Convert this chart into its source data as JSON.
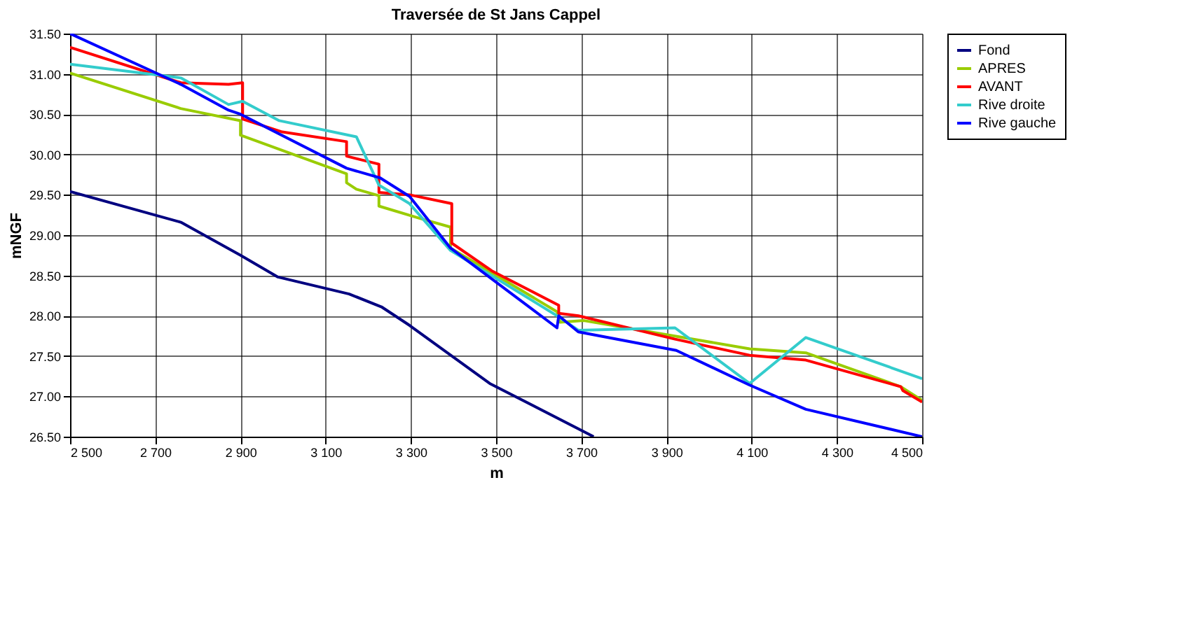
{
  "chart_data": {
    "type": "line",
    "title": "Traversée de St Jans Cappel",
    "xlabel": "m",
    "ylabel": "mNGF",
    "xlim": [
      2500,
      4500
    ],
    "xticks": [
      {
        "value": 2500,
        "label": "2 500"
      },
      {
        "value": 2700,
        "label": "2 700"
      },
      {
        "value": 2900,
        "label": "2 900"
      },
      {
        "value": 3100,
        "label": "3 100"
      },
      {
        "value": 3300,
        "label": "3 300"
      },
      {
        "value": 3500,
        "label": "3 500"
      },
      {
        "value": 3700,
        "label": "3 700"
      },
      {
        "value": 3900,
        "label": "3 900"
      },
      {
        "value": 4100,
        "label": "4 100"
      },
      {
        "value": 4300,
        "label": "4 300"
      },
      {
        "value": 4500,
        "label": "4 500"
      }
    ],
    "ylim": [
      26.5,
      31.5
    ],
    "yticks": [
      {
        "value": 26.5,
        "label": "26.50"
      },
      {
        "value": 27,
        "label": "27.00"
      },
      {
        "value": 27.5,
        "label": "27.50"
      },
      {
        "value": 28,
        "label": "28.00"
      },
      {
        "value": 28.5,
        "label": "28.50"
      },
      {
        "value": 29,
        "label": "29.00"
      },
      {
        "value": 29.5,
        "label": "29.50"
      },
      {
        "value": 30,
        "label": "30.00"
      },
      {
        "value": 30.5,
        "label": "30.50"
      },
      {
        "value": 31,
        "label": "31.00"
      },
      {
        "value": 31.5,
        "label": "31.50"
      }
    ],
    "grid": true,
    "legend": "right",
    "marker": "none",
    "line_style": "solid",
    "series": [
      {
        "name": "Fond",
        "color": "#000080",
        "x": [
          2500,
          2760,
          2900,
          2988,
          3155,
          3231,
          3297,
          3485,
          3729
        ],
        "values": [
          29.54,
          29.16,
          28.75,
          28.48,
          28.27,
          28.11,
          27.88,
          27.16,
          26.5
        ]
      },
      {
        "name": "APRES",
        "color": "#99cc00",
        "x": [
          2500,
          2760,
          2900,
          2900,
          3149,
          3149,
          3172,
          3225,
          3225,
          3320,
          3393,
          3393,
          3643,
          3650,
          3706,
          4095,
          4227,
          4450,
          4500
        ],
        "values": [
          31.01,
          30.57,
          30.42,
          30.24,
          29.76,
          29.65,
          29.57,
          29.49,
          29.36,
          29.21,
          29.1,
          28.84,
          28.05,
          27.92,
          27.94,
          27.59,
          27.54,
          27.12,
          26.95
        ]
      },
      {
        "name": "AVANT",
        "color": "#ff0000",
        "x": [
          2500,
          2760,
          2872,
          2905,
          2905,
          2998,
          3149,
          3149,
          3225,
          3225,
          3297,
          3396,
          3396,
          3492,
          3647,
          3647,
          3693,
          3920,
          4095,
          4227,
          4450,
          4455,
          4500
        ],
        "values": [
          31.33,
          30.89,
          30.87,
          30.89,
          30.44,
          30.28,
          30.16,
          29.98,
          29.88,
          29.53,
          29.5,
          29.39,
          28.9,
          28.55,
          28.13,
          28.03,
          28.0,
          27.71,
          27.51,
          27.45,
          27.12,
          27.07,
          26.93
        ]
      },
      {
        "name": "Rive droite",
        "color": "#33cccc",
        "x": [
          2500,
          2760,
          2872,
          2905,
          2991,
          3172,
          3225,
          3297,
          3393,
          3643,
          3693,
          3920,
          4095,
          4227,
          4500
        ],
        "values": [
          31.12,
          30.95,
          30.62,
          30.66,
          30.42,
          30.22,
          29.62,
          29.39,
          28.81,
          28.0,
          27.82,
          27.85,
          27.16,
          27.73,
          27.22
        ]
      },
      {
        "name": "Rive gauche",
        "color": "#0000ff",
        "x": [
          2500,
          2760,
          2872,
          2900,
          3149,
          3228,
          3297,
          3393,
          3643,
          3647,
          3693,
          3923,
          4095,
          4227,
          4500
        ],
        "values": [
          31.5,
          30.87,
          30.55,
          30.5,
          29.83,
          29.71,
          29.48,
          28.84,
          27.85,
          28.0,
          27.8,
          27.57,
          27.14,
          26.84,
          26.5
        ]
      }
    ]
  }
}
